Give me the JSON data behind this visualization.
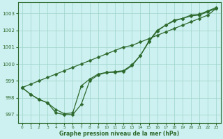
{
  "title": "Graphe pression niveau de la mer (hPa)",
  "bg_color": "#cdf0f0",
  "grid_color": "#9dd4c8",
  "line_color": "#2d6a2d",
  "x_values": [
    0,
    1,
    2,
    3,
    4,
    5,
    6,
    7,
    8,
    9,
    10,
    11,
    12,
    13,
    14,
    15,
    16,
    17,
    18,
    19,
    20,
    21,
    22,
    23
  ],
  "y_main": [
    998.6,
    998.2,
    997.9,
    997.7,
    997.1,
    997.0,
    997.0,
    997.6,
    999.0,
    999.35,
    999.5,
    999.5,
    999.55,
    999.9,
    1000.5,
    1001.3,
    1001.95,
    1002.3,
    1002.55,
    1002.7,
    1002.85,
    1002.9,
    1003.1,
    1003.3
  ],
  "y_upper": [
    998.6,
    998.2,
    997.9,
    997.7,
    997.3,
    997.05,
    997.1,
    998.7,
    999.1,
    999.4,
    999.5,
    999.55,
    999.6,
    999.95,
    1000.5,
    1001.35,
    1002.0,
    1002.3,
    1002.6,
    1002.7,
    1002.9,
    1002.95,
    1003.15,
    1003.35
  ],
  "y_straight": [
    998.6,
    998.8,
    999.0,
    999.2,
    999.4,
    999.6,
    999.8,
    1000.0,
    1000.2,
    1000.4,
    1000.6,
    1000.8,
    1001.0,
    1001.1,
    1001.3,
    1001.5,
    1001.7,
    1001.9,
    1002.1,
    1002.3,
    1002.5,
    1002.7,
    1002.9,
    1003.3
  ],
  "ylim_min": 996.5,
  "ylim_max": 1003.65,
  "yticks": [
    997,
    998,
    999,
    1000,
    1001,
    1002,
    1003
  ],
  "xlim_min": -0.5,
  "xlim_max": 23.5,
  "markersize": 2.5,
  "linewidth": 0.9
}
